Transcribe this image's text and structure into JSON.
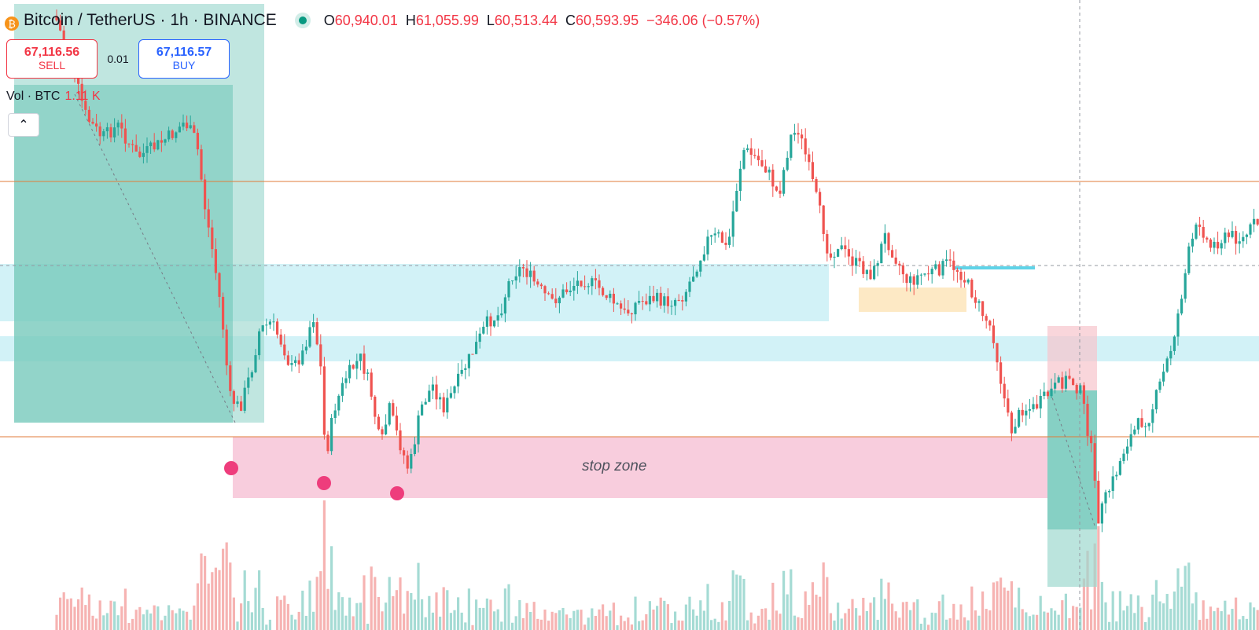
{
  "symbol": {
    "title": "Bitcoin / TetherUS · 1h · BINANCE",
    "coin_icon": "bitcoin-icon",
    "ohlc": [
      {
        "key": "O",
        "value": "60,940.01"
      },
      {
        "key": "H",
        "value": "61,055.99"
      },
      {
        "key": "L",
        "value": "60,513.44"
      },
      {
        "key": "C",
        "value": "60,593.95"
      }
    ],
    "change": "−346.06 (−0.57%)"
  },
  "trade": {
    "sell_price": "67,116.56",
    "sell_label": "SELL",
    "quantity": "0.01",
    "buy_price": "67,116.57",
    "buy_label": "BUY"
  },
  "volume": {
    "label": "Vol · BTC",
    "value": "1.11 K"
  },
  "collapse_icon": "chevron-up-icon",
  "annotations": {
    "zone_label": "stop zone"
  },
  "colors": {
    "up": "#26a69a",
    "down": "#ef5350",
    "support_zone": "#c9f0f5",
    "stop_zone": "#f8c9d9",
    "level_line": "#e07b39",
    "marker": "#ee3d7c"
  }
}
